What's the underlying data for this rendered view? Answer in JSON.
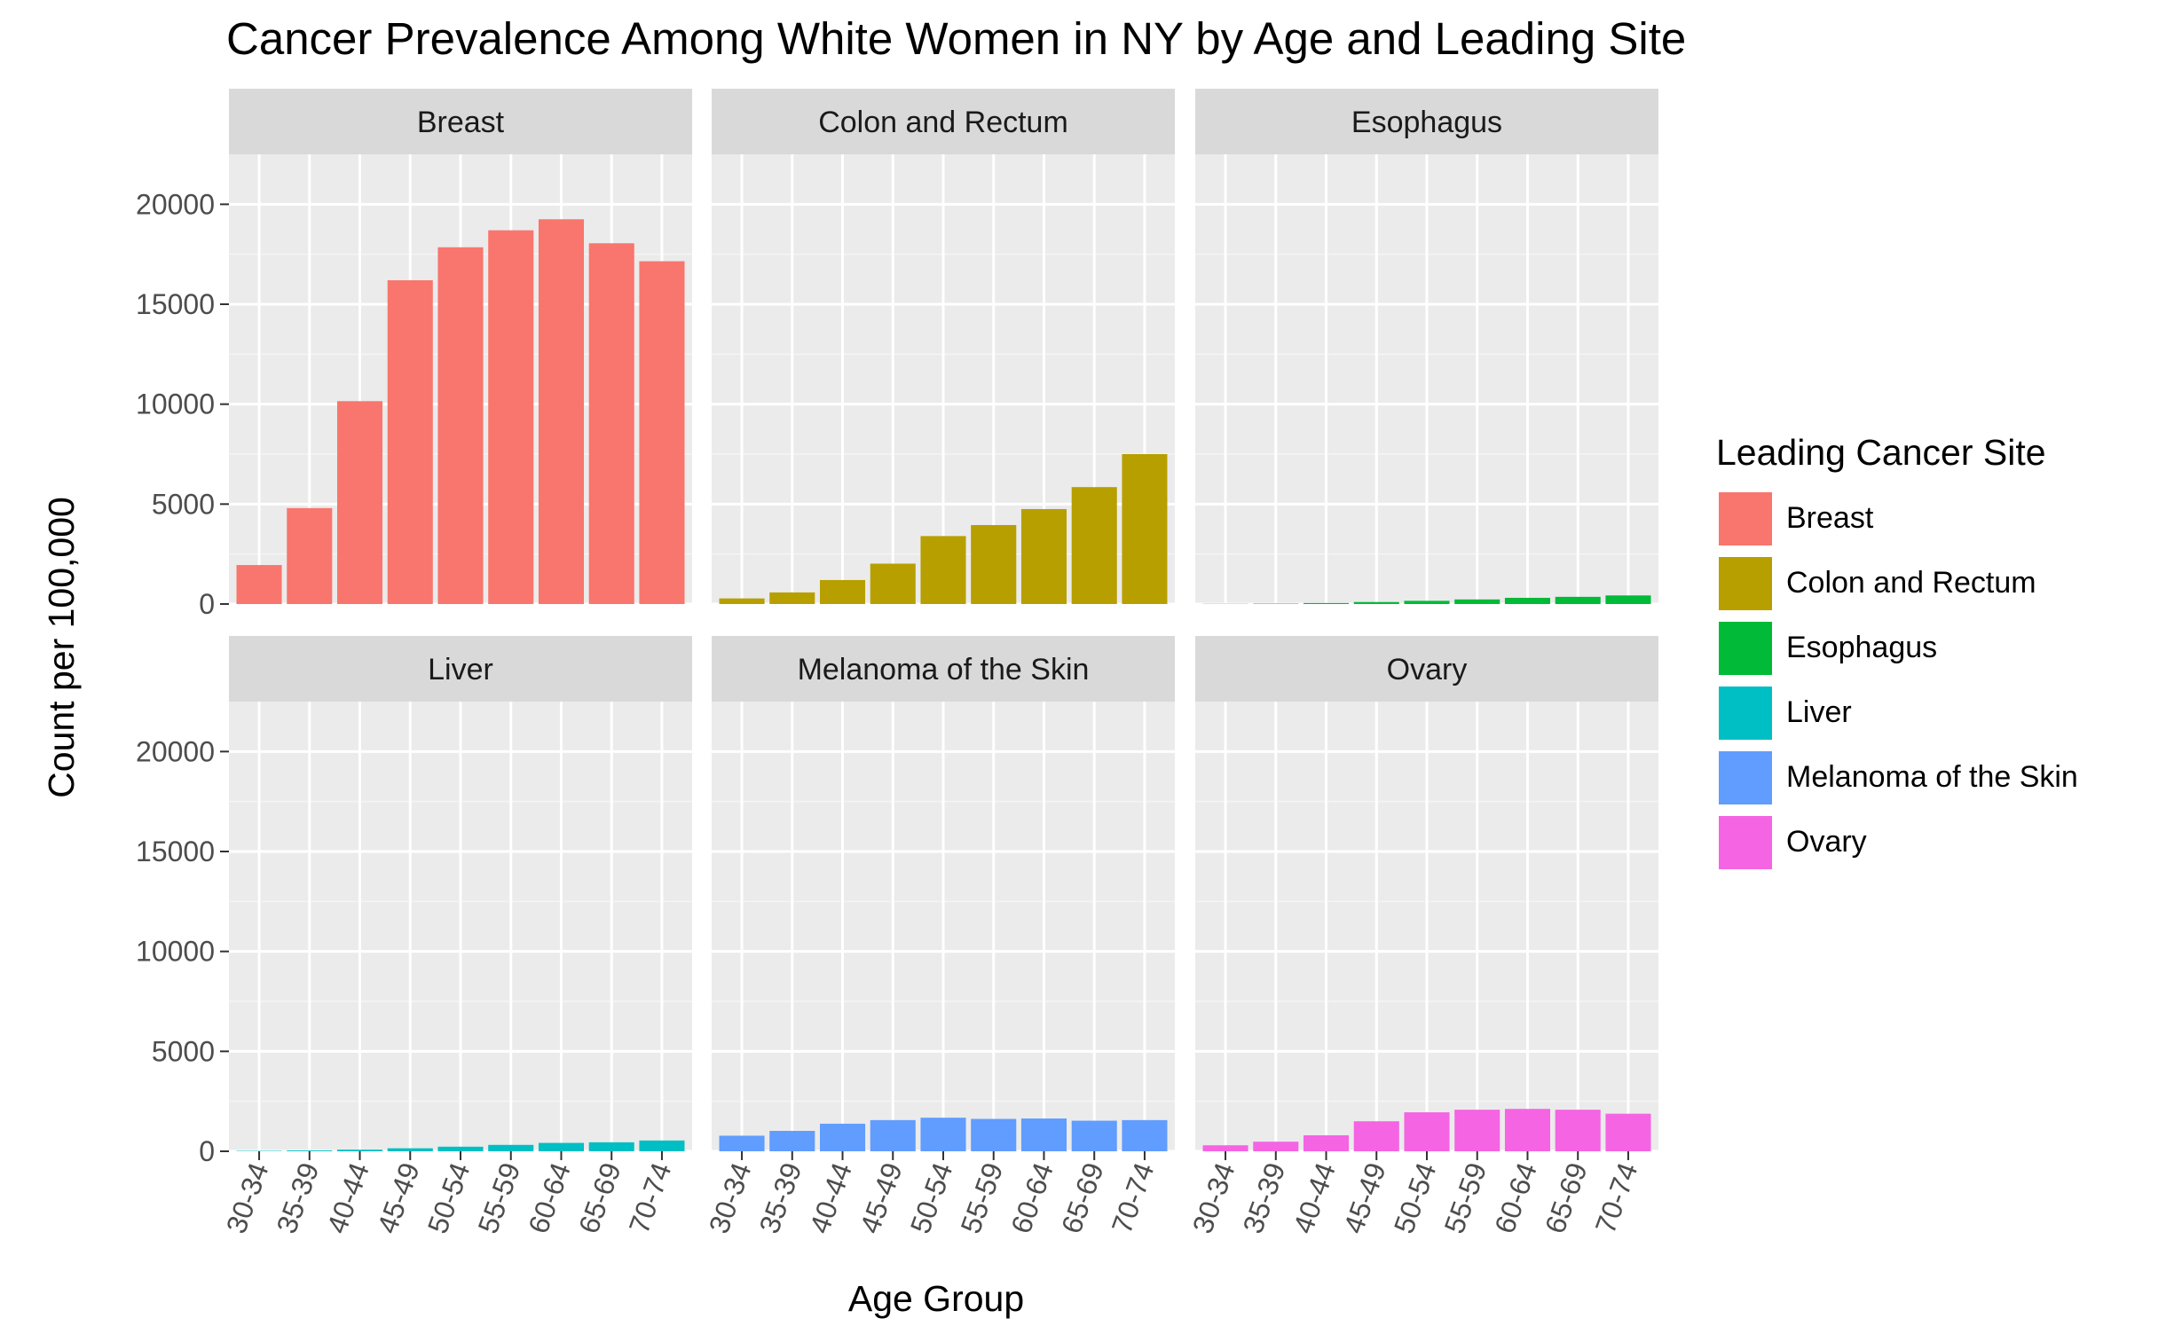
{
  "chart_data": {
    "type": "bar",
    "title": "Cancer Prevalence Among White Women in NY by Age and Leading Site",
    "xlabel": "Age Group",
    "ylabel": "Count per 100,000",
    "ylim": [
      0,
      22500
    ],
    "y_ticks": [
      0,
      5000,
      10000,
      15000,
      20000
    ],
    "y_tick_labels": [
      "0",
      "5000",
      "10000",
      "15000",
      "20000"
    ],
    "grid": true,
    "legend_title": "Leading Cancer Site",
    "legend_position": "right",
    "categories": [
      "30-34",
      "35-39",
      "40-44",
      "45-49",
      "50-54",
      "55-59",
      "60-64",
      "65-69",
      "70-74"
    ],
    "series": [
      {
        "name": "Breast",
        "color": "#F8766D",
        "values": [
          1950,
          4800,
          10150,
          16200,
          17850,
          18700,
          19250,
          18050,
          17150
        ]
      },
      {
        "name": "Colon and Rectum",
        "color": "#B79F00",
        "values": [
          280,
          580,
          1200,
          2020,
          3400,
          3950,
          4750,
          5850,
          7500
        ]
      },
      {
        "name": "Esophagus",
        "color": "#00BA38",
        "values": [
          10,
          20,
          50,
          100,
          160,
          230,
          310,
          360,
          430
        ]
      },
      {
        "name": "Liver",
        "color": "#00BFC4",
        "values": [
          20,
          40,
          80,
          150,
          230,
          320,
          420,
          450,
          540
        ]
      },
      {
        "name": "Melanoma of the Skin",
        "color": "#619CFF",
        "values": [
          780,
          1020,
          1380,
          1560,
          1680,
          1620,
          1640,
          1530,
          1560
        ]
      },
      {
        "name": "Ovary",
        "color": "#F564E3",
        "values": [
          300,
          480,
          800,
          1500,
          1950,
          2080,
          2120,
          2080,
          1880
        ]
      }
    ]
  }
}
